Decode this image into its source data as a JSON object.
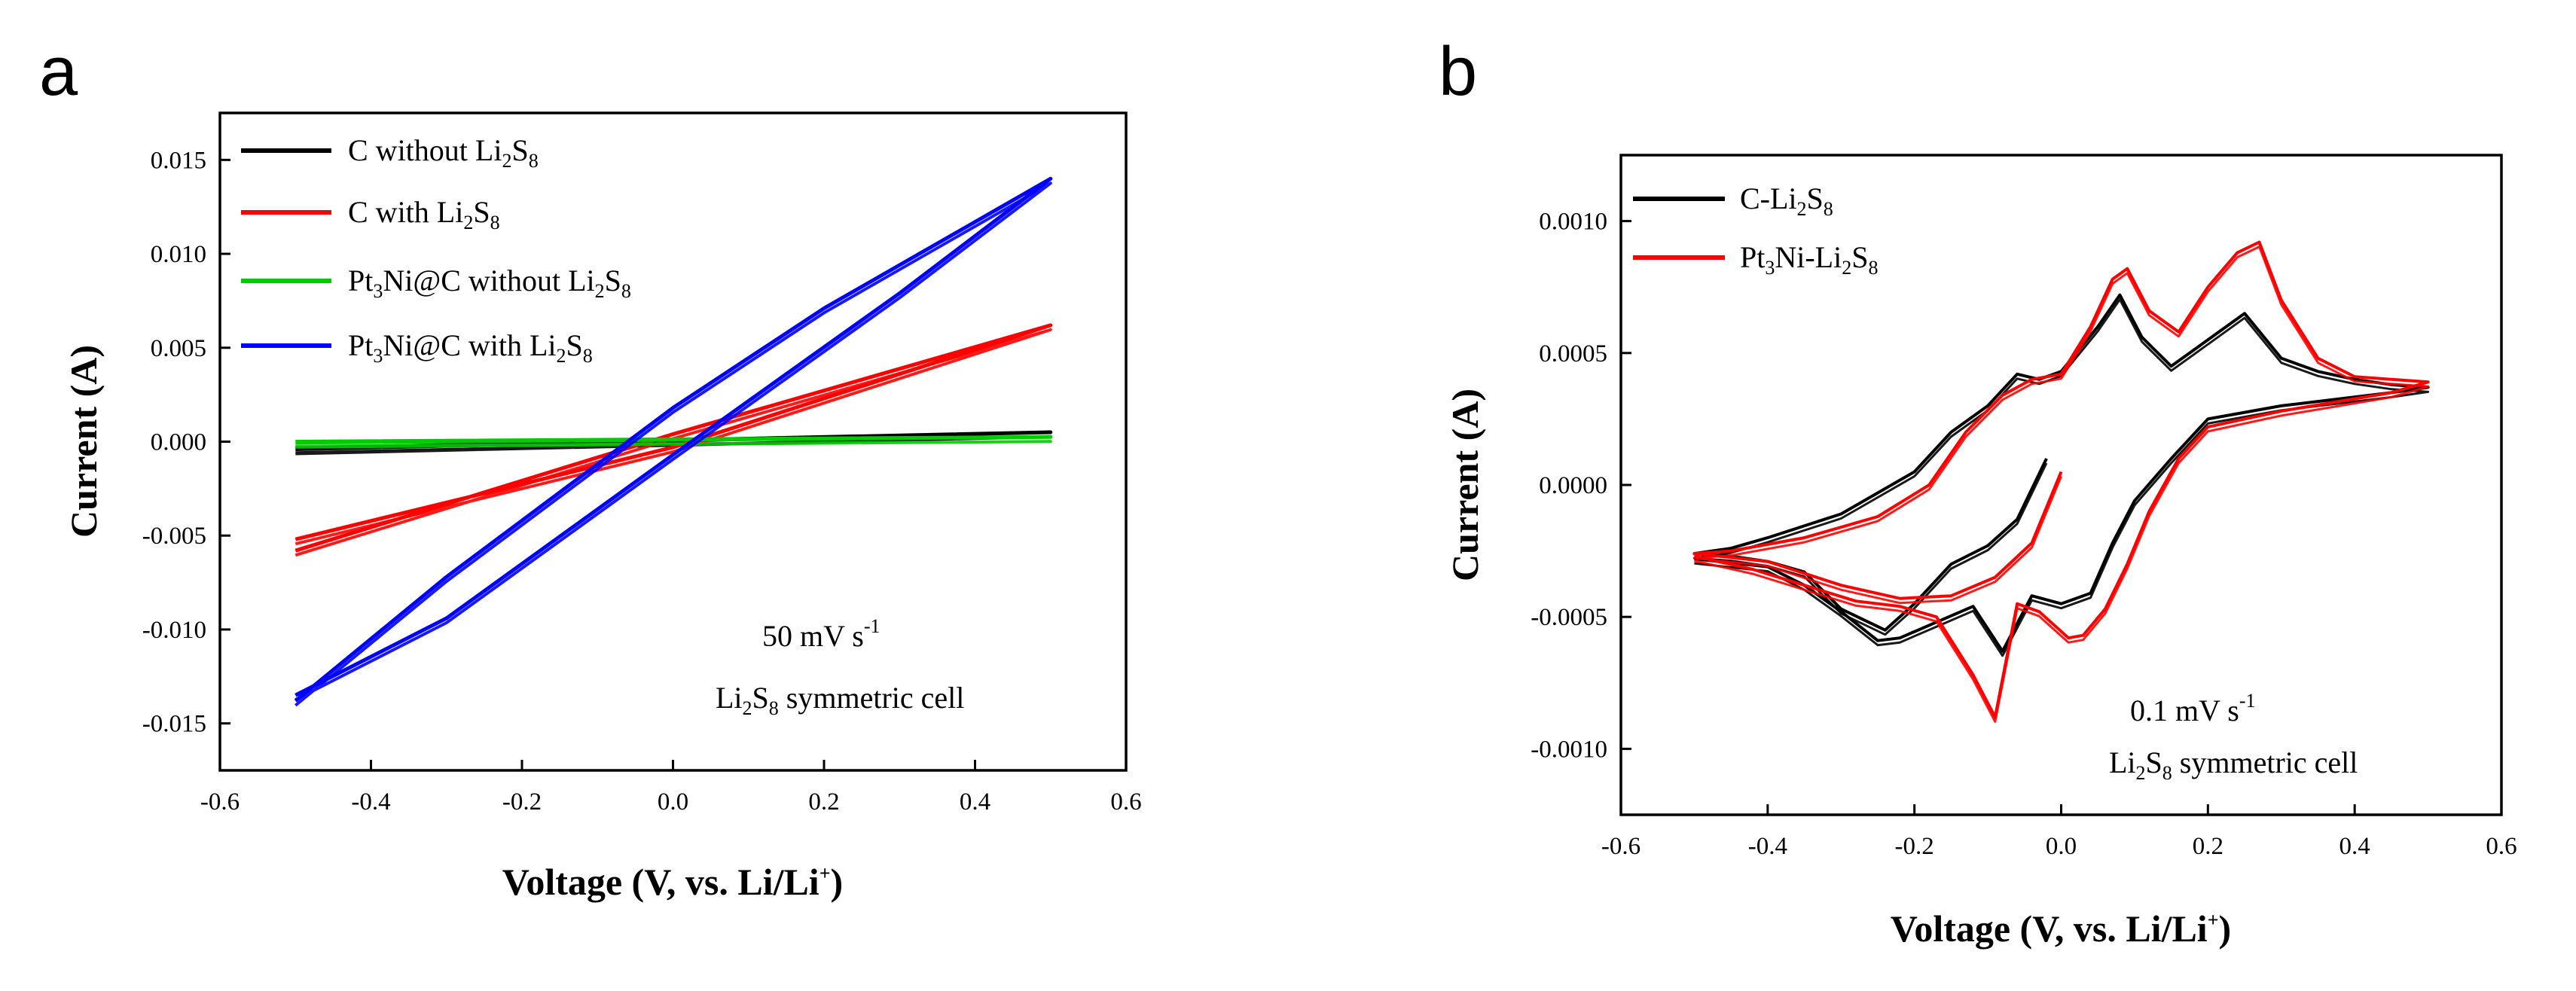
{
  "chart_data": [
    {
      "type": "line",
      "panel_label": "a",
      "xlabel": "Voltage (V, vs. Li/Li+)",
      "ylabel": "Current (A)",
      "xlim": [
        -0.6,
        0.6
      ],
      "ylim": [
        -0.0175,
        0.0175
      ],
      "xticks": [
        "-0.6",
        "-0.4",
        "-0.2",
        "0.0",
        "0.2",
        "0.4",
        "0.6"
      ],
      "yticks": [
        "-0.015",
        "-0.010",
        "-0.005",
        "0.000",
        "0.005",
        "0.010",
        "0.015"
      ],
      "legend_position": "top-left",
      "annotation_rate": "50 mV s-1",
      "annotation_cell": "Li2S8 symmetric cell",
      "series": [
        {
          "name": "C without Li2S8",
          "color": "#000000",
          "x": [
            -0.5,
            0.5,
            -0.5
          ],
          "y": [
            -0.00035,
            0.0005,
            -0.0004
          ]
        },
        {
          "name": "C with Li2S8",
          "color": "#ff0000",
          "x": [
            -0.5,
            0.0,
            0.5,
            0.0,
            -0.5
          ],
          "y": [
            -0.0058,
            0.0004,
            0.0062,
            -0.0003,
            -0.0052
          ]
        },
        {
          "name": "Pt3Ni@C without Li2S8",
          "color": "#00cc00",
          "x": [
            -0.5,
            0.5,
            -0.5
          ],
          "y": [
            0.0,
            0.00025,
            -5e-05
          ]
        },
        {
          "name": "Pt3Ni@C with Li2S8",
          "color": "#0000ff",
          "x": [
            -0.5,
            -0.3,
            0.0,
            0.2,
            0.5,
            0.3,
            0.0,
            -0.3,
            -0.5
          ],
          "y": [
            -0.0138,
            -0.0072,
            0.0018,
            0.0071,
            0.014,
            0.0079,
            -0.0007,
            -0.0094,
            -0.0135
          ]
        }
      ]
    },
    {
      "type": "line",
      "panel_label": "b",
      "xlabel": "Voltage (V, vs. Li/Li+)",
      "ylabel": "Current (A)",
      "xlim": [
        -0.6,
        0.6
      ],
      "ylim": [
        -0.00125,
        0.00125
      ],
      "xticks": [
        "-0.6",
        "-0.4",
        "-0.2",
        "0.0",
        "0.2",
        "0.4",
        "0.6"
      ],
      "yticks": [
        "-0.0010",
        "-0.0005",
        "0.0000",
        "0.0005",
        "0.0010"
      ],
      "legend_position": "top-left",
      "annotation_rate": "0.1 mV s-1",
      "annotation_cell": "Li2S8 symmetric cell",
      "series": [
        {
          "name": "C-Li2S8",
          "color": "#000000",
          "x": [
            -0.02,
            -0.06,
            -0.1,
            -0.15,
            -0.2,
            -0.24,
            -0.3,
            -0.35,
            -0.4,
            -0.45,
            -0.5,
            -0.45,
            -0.4,
            -0.3,
            -0.2,
            -0.15,
            -0.1,
            -0.06,
            -0.03,
            0.0,
            0.05,
            0.08,
            0.11,
            0.15,
            0.2,
            0.25,
            0.3,
            0.35,
            0.4,
            0.45,
            0.5,
            0.45,
            0.3,
            0.2,
            0.15,
            0.1,
            0.07,
            0.04,
            0.0,
            -0.04,
            -0.08,
            -0.12,
            -0.17,
            -0.22,
            -0.25,
            -0.3,
            -0.35,
            -0.4,
            -0.5
          ],
          "y": [
            0.0001,
            -0.00013,
            -0.00023,
            -0.0003,
            -0.00045,
            -0.00055,
            -0.00047,
            -0.00033,
            -0.00029,
            -0.00027,
            -0.00026,
            -0.00024,
            -0.0002,
            -0.00011,
            5e-05,
            0.0002,
            0.0003,
            0.00042,
            0.0004,
            0.00043,
            0.0006,
            0.00072,
            0.00056,
            0.00045,
            0.00055,
            0.00065,
            0.00048,
            0.00043,
            0.0004,
            0.00038,
            0.00037,
            0.00035,
            0.0003,
            0.00025,
            0.0001,
            -6e-05,
            -0.00022,
            -0.00041,
            -0.00045,
            -0.00042,
            -0.00063,
            -0.00046,
            -0.00052,
            -0.00058,
            -0.00059,
            -0.00048,
            -0.00038,
            -0.00031,
            -0.00028
          ]
        },
        {
          "name": "Pt3Ni-Li2S8",
          "color": "#ff0000",
          "x": [
            0.0,
            -0.04,
            -0.09,
            -0.15,
            -0.22,
            -0.3,
            -0.4,
            -0.5,
            -0.45,
            -0.35,
            -0.25,
            -0.18,
            -0.13,
            -0.08,
            -0.04,
            0.0,
            0.04,
            0.07,
            0.09,
            0.12,
            0.16,
            0.2,
            0.24,
            0.27,
            0.3,
            0.35,
            0.4,
            0.5,
            0.45,
            0.3,
            0.2,
            0.16,
            0.12,
            0.09,
            0.06,
            0.03,
            0.01,
            -0.03,
            -0.06,
            -0.09,
            -0.12,
            -0.17,
            -0.22,
            -0.28,
            -0.35,
            -0.42,
            -0.5
          ],
          "y": [
            5e-05,
            -0.00022,
            -0.00035,
            -0.00042,
            -0.00043,
            -0.00038,
            -0.00029,
            -0.00026,
            -0.00025,
            -0.0002,
            -0.00012,
            0.0,
            0.0002,
            0.00034,
            0.0004,
            0.00042,
            0.0006,
            0.00078,
            0.00082,
            0.00066,
            0.00058,
            0.00075,
            0.00088,
            0.00092,
            0.0007,
            0.00048,
            0.00041,
            0.00039,
            0.00035,
            0.00028,
            0.00022,
            0.0001,
            -0.0001,
            -0.0003,
            -0.00047,
            -0.00057,
            -0.00058,
            -0.00048,
            -0.00045,
            -0.00088,
            -0.00072,
            -0.0005,
            -0.00046,
            -0.00044,
            -0.00038,
            -0.00032,
            -0.00027
          ]
        }
      ]
    }
  ]
}
